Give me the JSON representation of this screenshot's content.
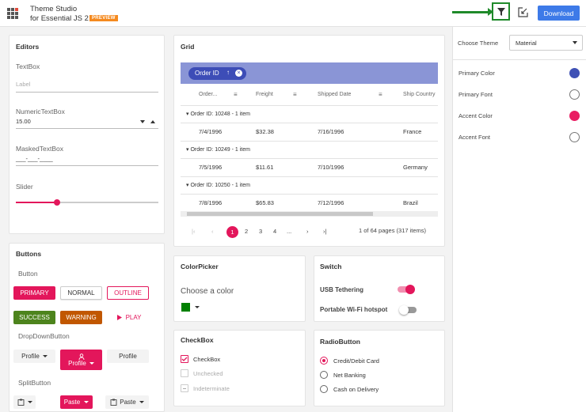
{
  "header": {
    "title_line1": "Theme Studio",
    "title_line2": "for Essential JS 2",
    "badge": "PREVIEW",
    "download_label": "Download",
    "filter_icon": "filter-icon",
    "edit_icon": "edit-icon"
  },
  "editors": {
    "title": "Editors",
    "textbox_label": "TextBox",
    "textbox_placeholder": "Label",
    "numeric_label": "NumericTextBox",
    "numeric_value": "15.00",
    "masked_label": "MaskedTextBox",
    "masked_value": "___-___-____",
    "slider_label": "Slider",
    "slider_value_percent": 29
  },
  "grid": {
    "title": "Grid",
    "group_chip": "Order ID",
    "columns": [
      "Order...",
      "Freight",
      "Shipped Date",
      "Ship Country"
    ],
    "groups": [
      {
        "caption": "Order ID: 10248 - 1 item",
        "row": [
          "7/4/1996",
          "$32.38",
          "7/16/1996",
          "France"
        ]
      },
      {
        "caption": "Order ID: 10249 - 1 item",
        "row": [
          "7/5/1996",
          "$11.61",
          "7/10/1996",
          "Germany"
        ]
      },
      {
        "caption": "Order ID: 10250 - 1 item",
        "row": [
          "7/8/1996",
          "$65.83",
          "7/12/1996",
          "Brazil"
        ]
      }
    ],
    "pager": {
      "pages": [
        "1",
        "2",
        "3",
        "4",
        "..."
      ],
      "active_page": "1",
      "info": "1 of 64 pages (317 items)"
    }
  },
  "buttons": {
    "title": "Buttons",
    "button_label": "Button",
    "primary": "PRIMARY",
    "normal": "NORMAL",
    "outline": "OUTLINE",
    "success": "SUCCESS",
    "warning": "WARNING",
    "play": "PLAY",
    "dropdown_label": "DropDownButton",
    "profile": "Profile",
    "split_label": "SplitButton",
    "paste": "Paste"
  },
  "colorpicker": {
    "title": "ColorPicker",
    "prompt": "Choose a color",
    "color": "#008000"
  },
  "switch": {
    "title": "Switch",
    "items": [
      {
        "label": "USB Tethering",
        "on": true
      },
      {
        "label": "Portable Wi-Fi hotspot",
        "on": false
      }
    ]
  },
  "checkbox": {
    "title": "CheckBox",
    "items": [
      "CheckBox",
      "Unchecked",
      "Indeterminate"
    ]
  },
  "radio": {
    "title": "RadioButton",
    "items": [
      "Credit/Debit Card",
      "Net Banking",
      "Cash on Delivery"
    ]
  },
  "theme_panel": {
    "choose_theme_label": "Choose Theme",
    "selected_theme": "Material",
    "primary_color_label": "Primary Color",
    "primary_color": "#3f51b5",
    "primary_font_label": "Primary Font",
    "accent_color_label": "Accent Color",
    "accent_color": "#e91e63",
    "accent_font_label": "Accent Font"
  }
}
